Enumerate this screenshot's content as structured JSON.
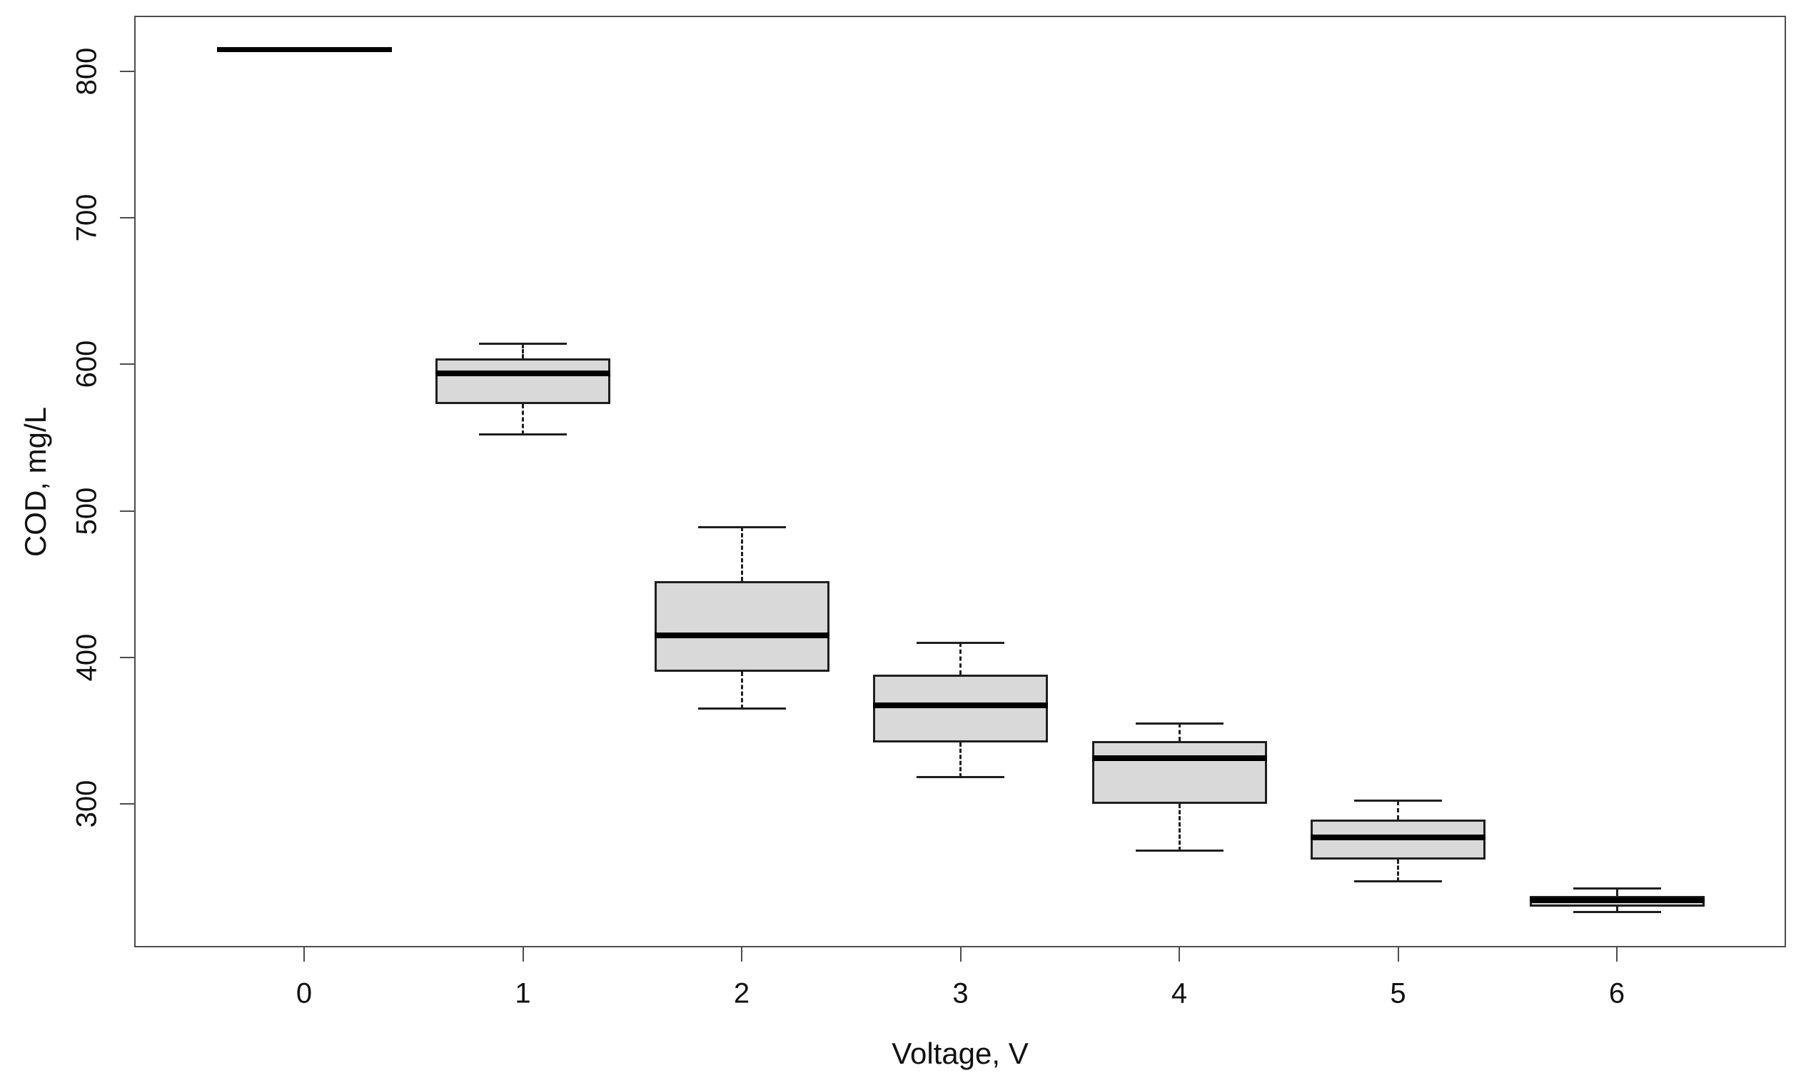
{
  "chart_data": {
    "type": "boxplot",
    "title": "",
    "xlabel": "Voltage, V",
    "ylabel": "COD, mg/L",
    "categories": [
      "0",
      "1",
      "2",
      "3",
      "4",
      "5",
      "6"
    ],
    "y_ticks": [
      300,
      400,
      500,
      600,
      700,
      800
    ],
    "ylim": [
      202,
      838
    ],
    "grid": false,
    "legend": "none",
    "box_fill_color": "#d9d9d9",
    "box_border_color": "#1f1f1f",
    "median_color": "#000000",
    "whisker_style": "dashed",
    "series": [
      {
        "category": "0",
        "min": 815,
        "q1": 815,
        "median": 815,
        "q3": 815,
        "max": 815,
        "degenerate": true
      },
      {
        "category": "1",
        "min": 552,
        "q1": 573,
        "median": 594,
        "q3": 604,
        "max": 614,
        "degenerate": false
      },
      {
        "category": "2",
        "min": 365,
        "q1": 390,
        "median": 415,
        "q3": 452,
        "max": 489,
        "degenerate": false
      },
      {
        "category": "3",
        "min": 318,
        "q1": 342,
        "median": 367,
        "q3": 388,
        "max": 410,
        "degenerate": false
      },
      {
        "category": "4",
        "min": 268,
        "q1": 300,
        "median": 331,
        "q3": 343,
        "max": 355,
        "degenerate": false
      },
      {
        "category": "5",
        "min": 247,
        "q1": 262,
        "median": 277,
        "q3": 289,
        "max": 302,
        "degenerate": false
      },
      {
        "category": "6",
        "min": 226,
        "q1": 230,
        "median": 234,
        "q3": 237,
        "max": 242,
        "degenerate": false
      }
    ]
  }
}
